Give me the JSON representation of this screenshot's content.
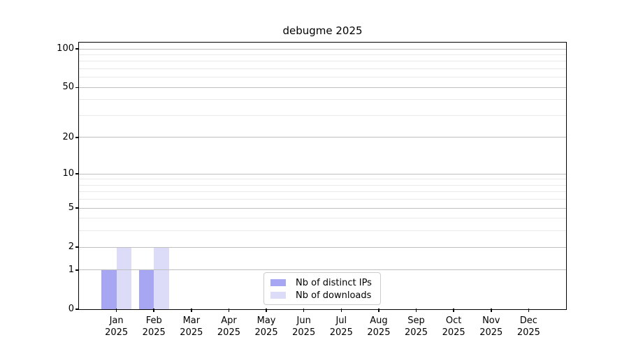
{
  "chart_data": {
    "type": "bar",
    "title": "debugme 2025",
    "categories": [
      "Jan 2025",
      "Feb 2025",
      "Mar 2025",
      "Apr 2025",
      "May 2025",
      "Jun 2025",
      "Jul 2025",
      "Aug 2025",
      "Sep 2025",
      "Oct 2025",
      "Nov 2025",
      "Dec 2025"
    ],
    "x_ticks": {
      "months": [
        "Jan",
        "Feb",
        "Mar",
        "Apr",
        "May",
        "Jun",
        "Jul",
        "Aug",
        "Sep",
        "Oct",
        "Nov",
        "Dec"
      ],
      "year": "2025"
    },
    "series": [
      {
        "name": "Nb of distinct IPs",
        "color": "#a6a6f2",
        "values": [
          1,
          1,
          0,
          0,
          0,
          0,
          0,
          0,
          0,
          0,
          0,
          0
        ]
      },
      {
        "name": "Nb of downloads",
        "color": "#dcdcf8",
        "values": [
          2,
          2,
          0,
          0,
          0,
          0,
          0,
          0,
          0,
          0,
          0,
          0
        ]
      }
    ],
    "y_axis": {
      "scale": "log1p",
      "major_ticks": [
        0,
        1,
        2,
        5,
        10,
        20,
        50,
        100
      ],
      "minor_ticks": [
        3,
        4,
        6,
        7,
        8,
        9,
        30,
        40,
        60,
        70,
        80,
        90
      ],
      "top_value": 112
    },
    "legend": {
      "position": "lower center"
    },
    "grid": true
  }
}
